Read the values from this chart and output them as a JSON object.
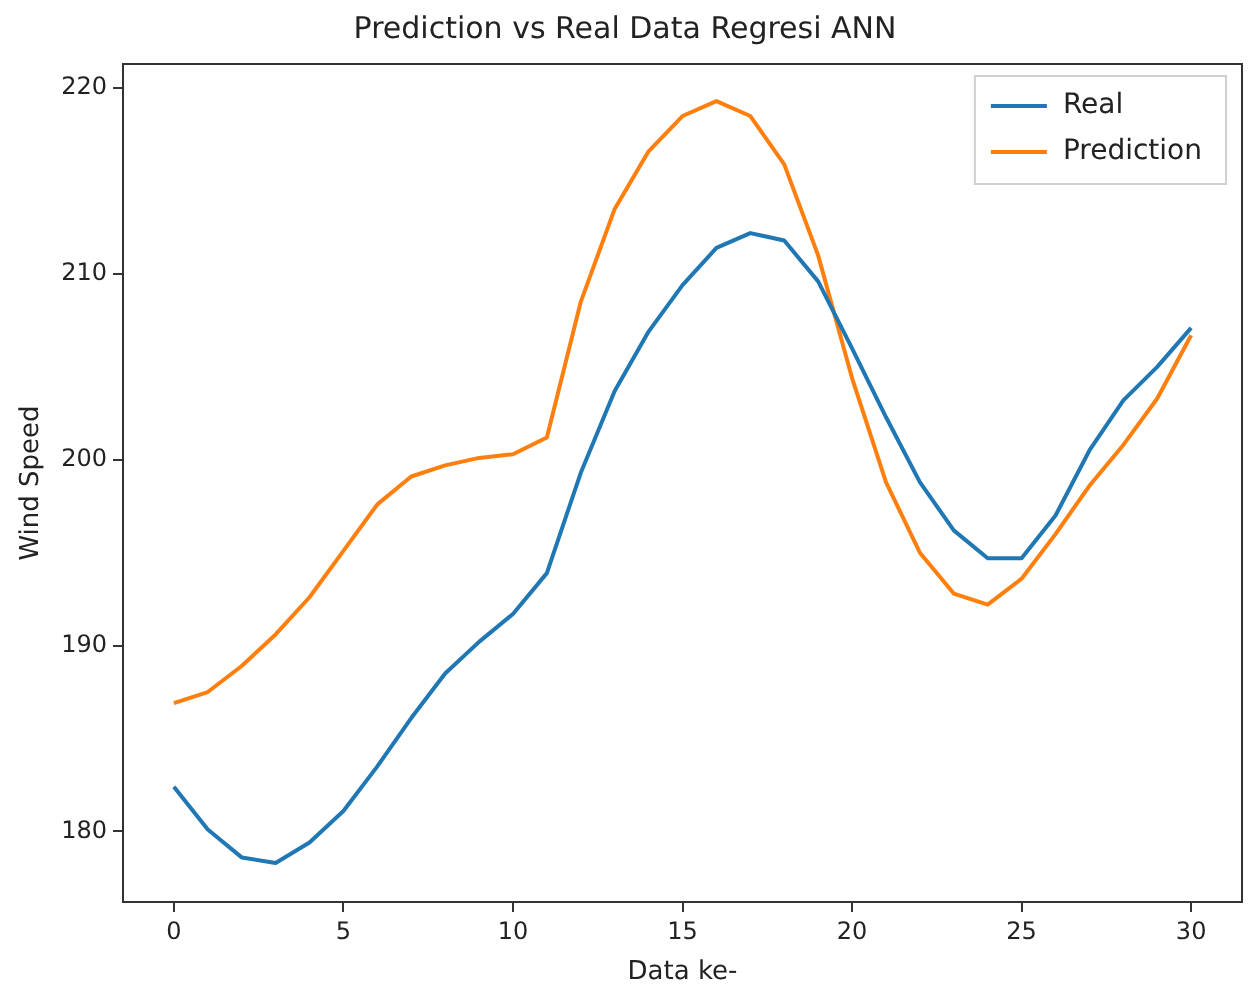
{
  "chart_data": {
    "type": "line",
    "title": "Prediction vs Real Data Regresi ANN",
    "xlabel": "Data ke-",
    "ylabel": "Wind Speed",
    "x": [
      0,
      1,
      2,
      3,
      4,
      5,
      6,
      7,
      8,
      9,
      10,
      11,
      12,
      13,
      14,
      15,
      16,
      17,
      18,
      19,
      20,
      21,
      22,
      23,
      24,
      25,
      26,
      27,
      28,
      29,
      30
    ],
    "series": [
      {
        "name": "Real",
        "color": "#1f77b4",
        "values": [
          182.4,
          180.1,
          178.6,
          178.3,
          179.4,
          181.1,
          183.5,
          186.1,
          188.5,
          190.2,
          191.7,
          193.9,
          199.3,
          203.7,
          206.9,
          209.4,
          211.4,
          212.2,
          211.8,
          209.6,
          206.0,
          202.3,
          198.8,
          196.2,
          194.7,
          194.7,
          197.0,
          200.5,
          203.2,
          205.0,
          207.1
        ]
      },
      {
        "name": "Prediction",
        "color": "#ff7f0e",
        "values": [
          186.9,
          187.5,
          188.9,
          190.6,
          192.6,
          195.1,
          197.6,
          199.1,
          199.7,
          200.1,
          200.3,
          201.2,
          208.5,
          213.5,
          216.6,
          218.5,
          219.3,
          218.5,
          215.9,
          211.0,
          204.4,
          198.8,
          195.0,
          192.8,
          192.2,
          193.6,
          196.0,
          198.6,
          200.8,
          203.3,
          206.7
        ]
      }
    ],
    "xlim": [
      -1.5,
      31.5
    ],
    "xticks": [
      0,
      5,
      10,
      15,
      20,
      25,
      30
    ],
    "ylim": [
      176.2,
      221.3
    ],
    "yticks": [
      180,
      190,
      200,
      210,
      220
    ],
    "grid": false,
    "legend": "top right",
    "marker": "none",
    "line_style": "solid"
  }
}
